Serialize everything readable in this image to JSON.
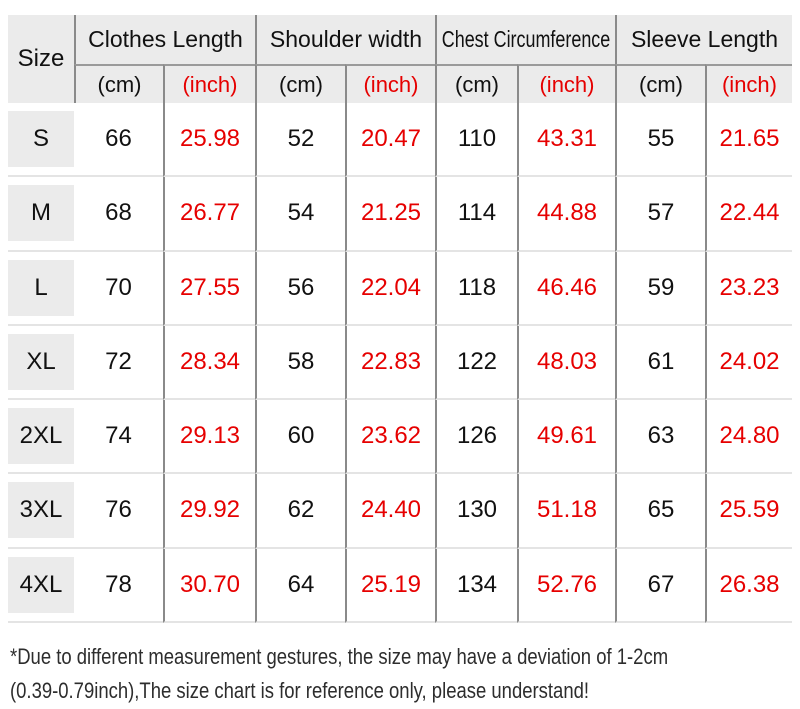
{
  "size_chart": {
    "corner_label": "Size",
    "unit_labels": {
      "cm": "(cm)",
      "inch": "(inch)"
    },
    "column_groups": [
      {
        "label": "Clothes Length"
      },
      {
        "label": "Shoulder width"
      },
      {
        "label": "Chest Circumference"
      },
      {
        "label": "Sleeve Length"
      }
    ],
    "rows": [
      {
        "size": "S",
        "values": [
          "66",
          "25.98",
          "52",
          "20.47",
          "110",
          "43.31",
          "55",
          "21.65"
        ]
      },
      {
        "size": "M",
        "values": [
          "68",
          "26.77",
          "54",
          "21.25",
          "114",
          "44.88",
          "57",
          "22.44"
        ]
      },
      {
        "size": "L",
        "values": [
          "70",
          "27.55",
          "56",
          "22.04",
          "118",
          "46.46",
          "59",
          "23.23"
        ]
      },
      {
        "size": "XL",
        "values": [
          "72",
          "28.34",
          "58",
          "22.83",
          "122",
          "48.03",
          "61",
          "24.02"
        ]
      },
      {
        "size": "2XL",
        "values": [
          "74",
          "29.13",
          "60",
          "23.62",
          "126",
          "49.61",
          "63",
          "24.80"
        ]
      },
      {
        "size": "3XL",
        "values": [
          "76",
          "29.92",
          "62",
          "24.40",
          "130",
          "51.18",
          "65",
          "25.59"
        ]
      },
      {
        "size": "4XL",
        "values": [
          "78",
          "30.70",
          "64",
          "25.19",
          "134",
          "52.76",
          "67",
          "26.38"
        ]
      }
    ]
  },
  "footnote": {
    "line1": "*Due to different measurement gestures, the size may have a deviation of 1-2cm",
    "line2": "(0.39-0.79inch),The size chart is for reference only, please understand!"
  },
  "colors": {
    "accent_red": "#e60000",
    "text_black": "#111111",
    "header_bg": "#ebebeb",
    "divider_dark": "#8a8a8a",
    "header_divider": "#9a9a9a",
    "row_divider_light": "#e4e4e4",
    "footnote_text": "#2d2d2d"
  },
  "chart_data": {
    "type": "table",
    "title": "Garment size chart",
    "columns": [
      "Size",
      "Clothes Length (cm)",
      "Clothes Length (inch)",
      "Shoulder width (cm)",
      "Shoulder width (inch)",
      "Chest Circumference (cm)",
      "Chest Circumference (inch)",
      "Sleeve Length (cm)",
      "Sleeve Length (inch)"
    ],
    "rows": [
      [
        "S",
        66,
        25.98,
        52,
        20.47,
        110,
        43.31,
        55,
        21.65
      ],
      [
        "M",
        68,
        26.77,
        54,
        21.25,
        114,
        44.88,
        57,
        22.44
      ],
      [
        "L",
        70,
        27.55,
        56,
        22.04,
        118,
        46.46,
        59,
        23.23
      ],
      [
        "XL",
        72,
        28.34,
        58,
        22.83,
        122,
        48.03,
        61,
        24.02
      ],
      [
        "2XL",
        74,
        29.13,
        60,
        23.62,
        126,
        49.61,
        63,
        24.8
      ],
      [
        "3XL",
        76,
        29.92,
        62,
        24.4,
        130,
        51.18,
        65,
        25.59
      ],
      [
        "4XL",
        78,
        30.7,
        64,
        25.19,
        134,
        52.76,
        67,
        26.38
      ]
    ],
    "notes": "inch columns rendered in red; cm columns in black"
  }
}
